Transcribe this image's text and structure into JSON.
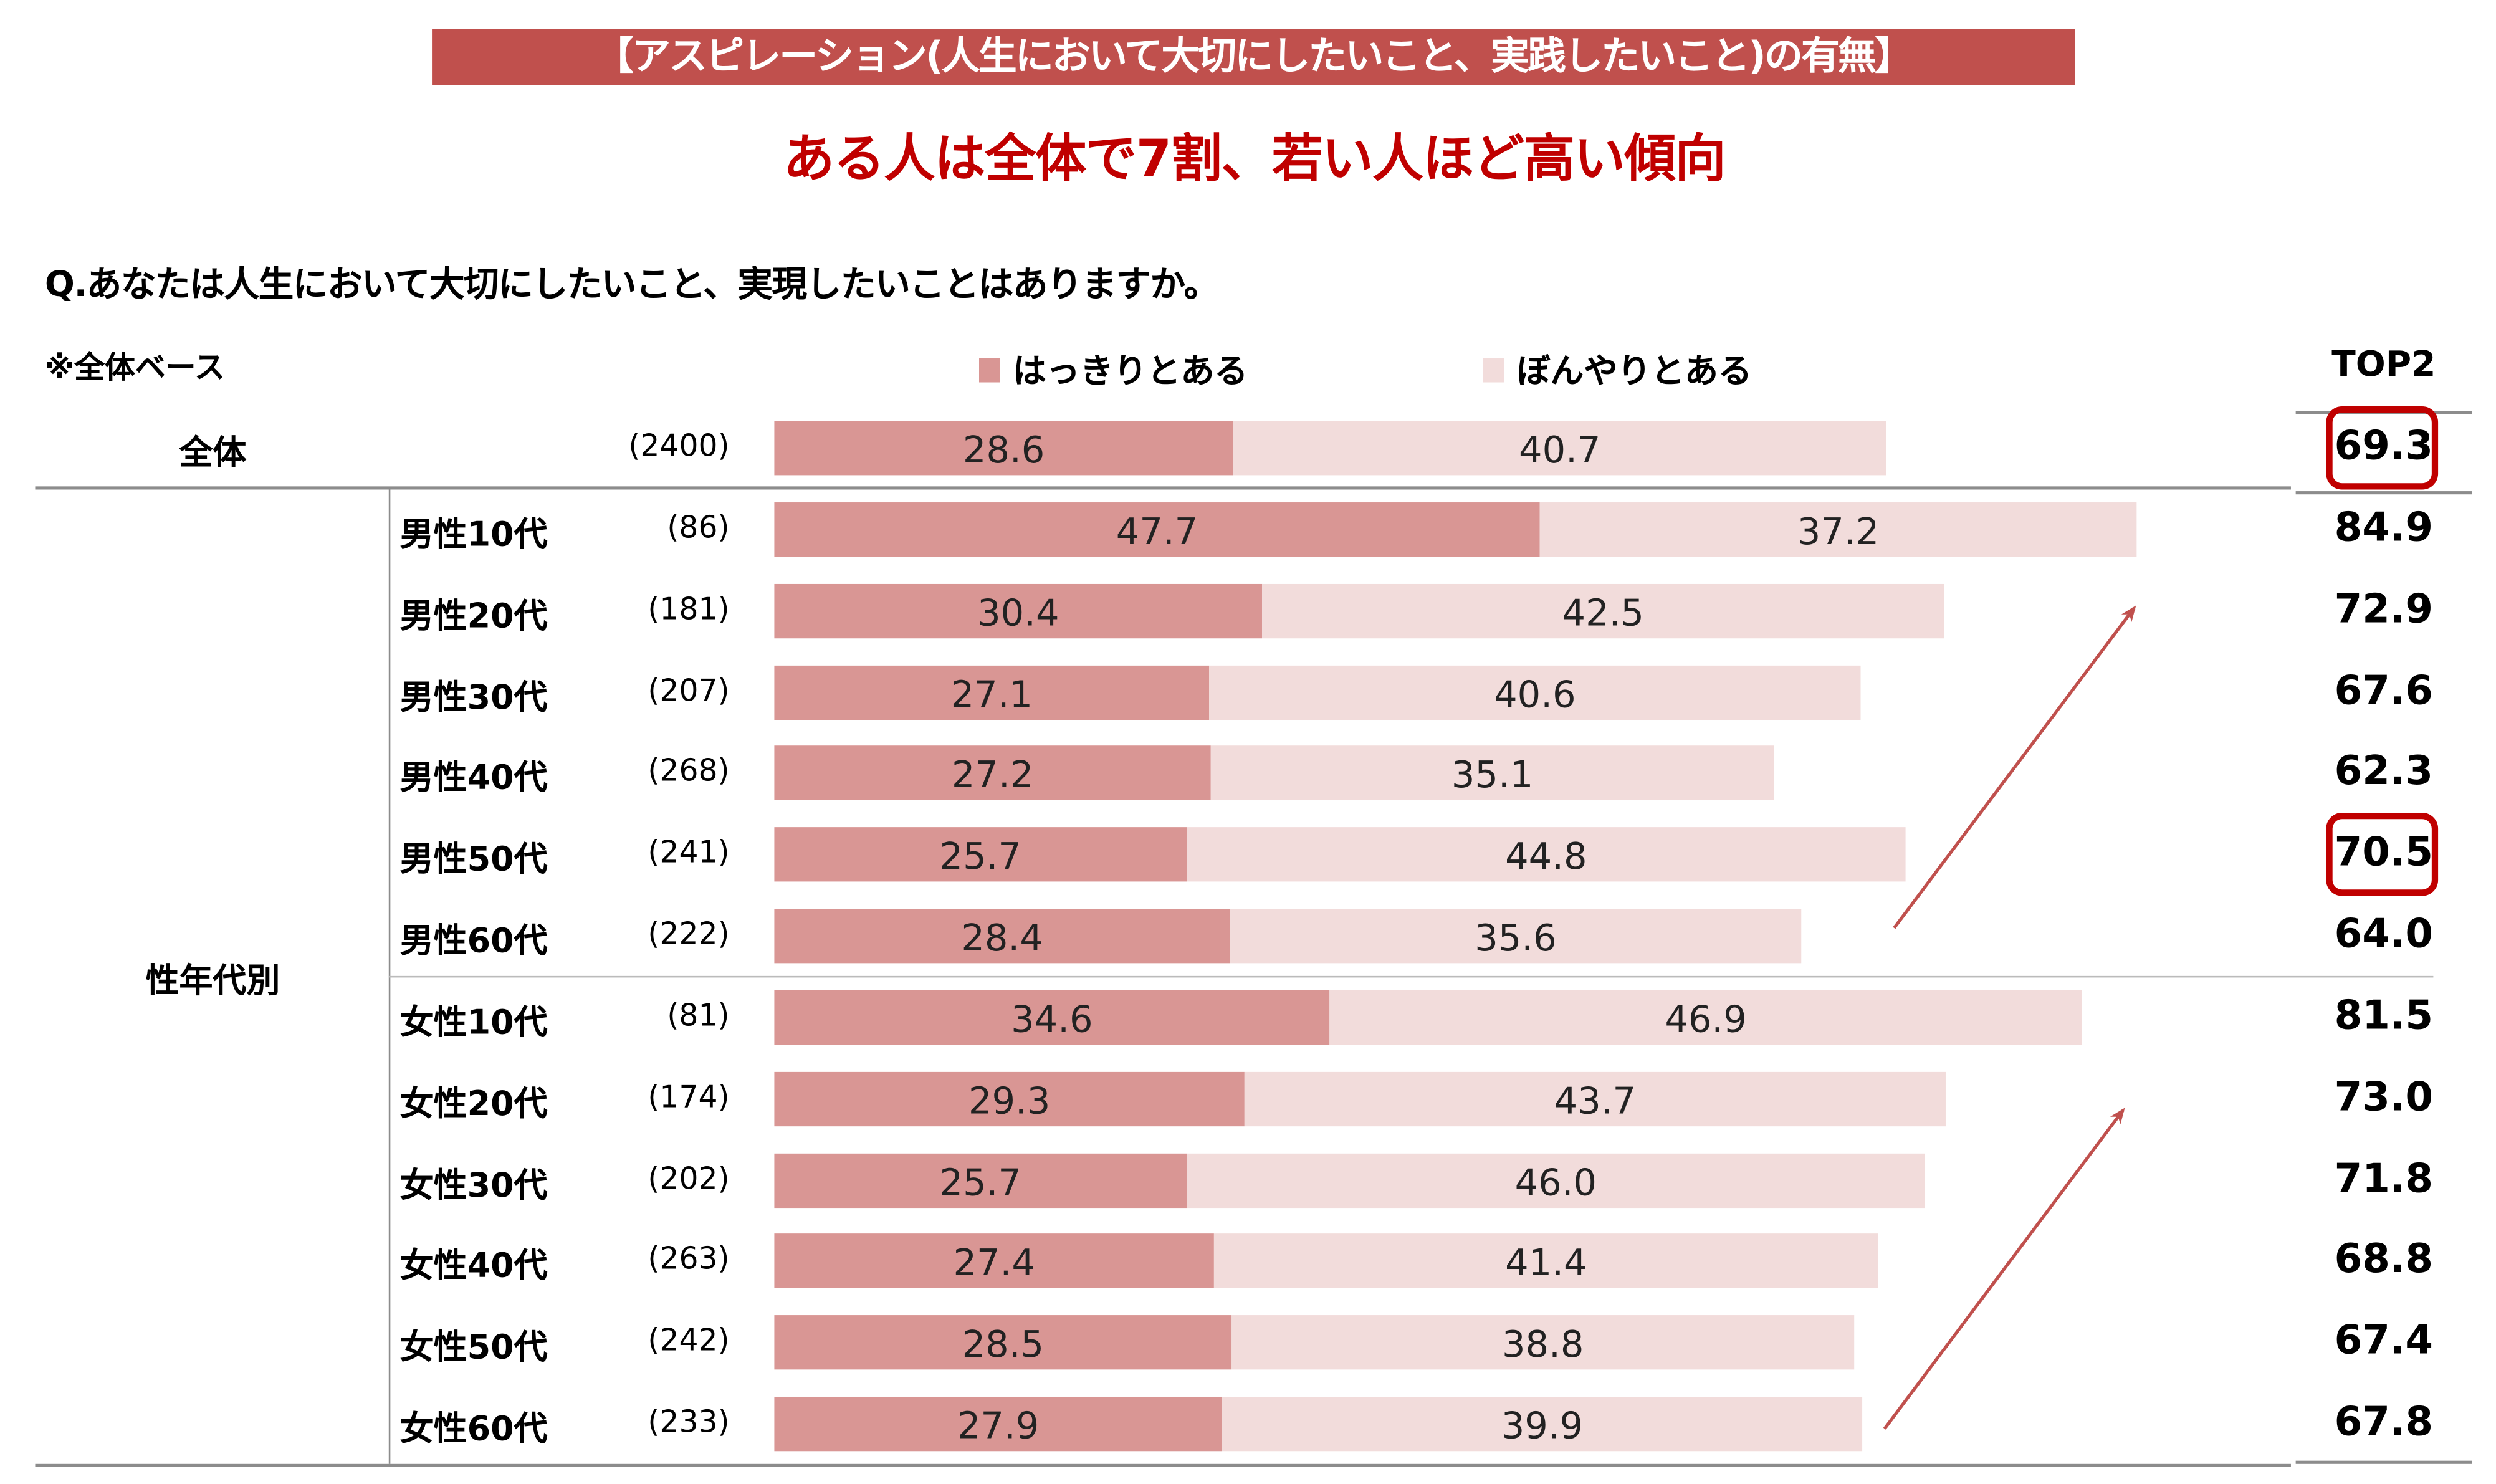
{
  "header": {
    "banner": "【アスピレーション(人生において大切にしたいこと、実践したいこと)の有無】",
    "subtitle": "ある人は全体で7割、若い人ほど高い傾向",
    "question": "Q.あなたは人生において大切にしたいこと、実現したいことはありますか。",
    "base_note": "※全体ベース",
    "group_label": "性年代別",
    "top2_header": "TOP2"
  },
  "colors": {
    "banner": "#c0504d",
    "subtitle": "#c00000",
    "clear": "#d99694",
    "vague": "#f2dcdb",
    "highlight": "#c00000",
    "arrow": "#c0504d"
  },
  "chart_data": {
    "type": "bar",
    "orientation": "horizontal",
    "stacked": true,
    "legend_position": "top",
    "series": [
      {
        "name": "はっきりとある",
        "values": [
          28.6,
          47.7,
          30.4,
          27.1,
          27.2,
          25.7,
          28.4,
          34.6,
          29.3,
          25.7,
          27.4,
          28.5,
          27.9
        ]
      },
      {
        "name": "ぼんやりとある",
        "values": [
          40.7,
          37.2,
          42.5,
          40.6,
          35.1,
          44.8,
          35.6,
          46.9,
          43.7,
          46.0,
          41.4,
          38.8,
          39.9
        ]
      }
    ],
    "categories": [
      "全体",
      "男性10代",
      "男性20代",
      "男性30代",
      "男性40代",
      "男性50代",
      "男性60代",
      "女性10代",
      "女性20代",
      "女性30代",
      "女性40代",
      "女性50代",
      "女性60代"
    ],
    "n": [
      "(2400)",
      "(86)",
      "(181)",
      "(207)",
      "(268)",
      "(241)",
      "(222)",
      "(81)",
      "(174)",
      "(202)",
      "(263)",
      "(242)",
      "(233)"
    ],
    "top2": [
      "69.3",
      "84.9",
      "72.9",
      "67.6",
      "62.3",
      "70.5",
      "64.0",
      "81.5",
      "73.0",
      "71.8",
      "68.8",
      "67.4",
      "67.8"
    ],
    "highlighted": [
      "全体",
      "男性50代"
    ],
    "trend_arrows": [
      "男性60代→男性20代",
      "女性60代→女性20代"
    ]
  }
}
